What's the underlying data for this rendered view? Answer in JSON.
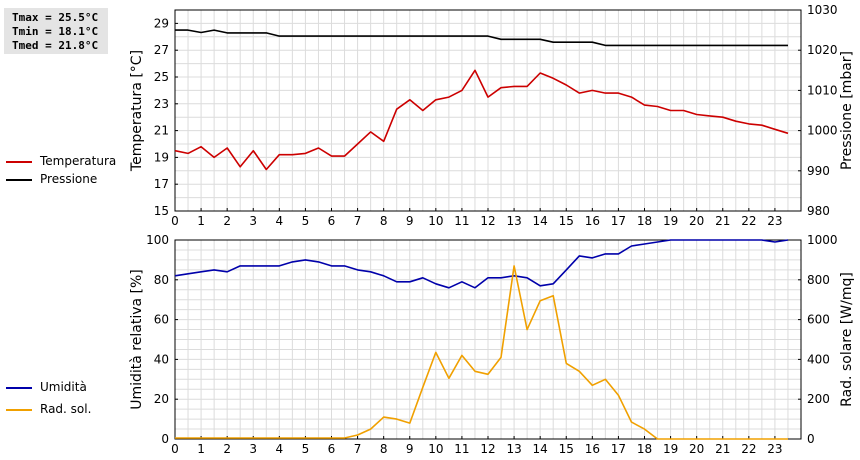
{
  "stats": {
    "tmax": "Tmax = 25.5°C",
    "tmin": "Tmin = 18.1°C",
    "tmed": "Tmed = 21.8°C"
  },
  "legend_top": [
    {
      "label": "Temperatura",
      "color": "#cc0000"
    },
    {
      "label": "Pressione",
      "color": "#000000"
    }
  ],
  "legend_bottom": [
    {
      "label": "Umidità",
      "color": "#0000aa"
    },
    {
      "label": "Rad. sol.",
      "color": "#f0a000"
    }
  ],
  "chart_data": [
    {
      "type": "line",
      "xlabel": "",
      "ylabel": "Temperatura [°C]",
      "ylabel_right": "Pressione [mbar]",
      "xlim": [
        0,
        24
      ],
      "ylim": [
        15,
        30
      ],
      "ylim_right": [
        980,
        1030
      ],
      "x_ticks": [
        "0",
        "1",
        "2",
        "3",
        "4",
        "5",
        "6",
        "7",
        "8",
        "9",
        "10",
        "11",
        "12",
        "13",
        "14",
        "15",
        "16",
        "17",
        "18",
        "19",
        "20",
        "21",
        "22",
        "23"
      ],
      "y_ticks": [
        "15",
        "17",
        "19",
        "21",
        "23",
        "25",
        "27",
        "29"
      ],
      "y_ticks_right": [
        "980",
        "990",
        "1000",
        "1010",
        "1020",
        "1030"
      ],
      "grid": true,
      "series": [
        {
          "name": "Temperatura",
          "axis": "left",
          "color": "#cc0000",
          "x": [
            0,
            0.5,
            1,
            1.5,
            2,
            2.5,
            3,
            3.5,
            4,
            4.5,
            5,
            5.5,
            6,
            6.5,
            7,
            7.5,
            8,
            8.5,
            9,
            9.5,
            10,
            10.5,
            11,
            11.5,
            12,
            12.5,
            13,
            13.5,
            14,
            14.5,
            15,
            15.5,
            16,
            16.5,
            17,
            17.5,
            18,
            18.5,
            19,
            19.5,
            20,
            20.5,
            21,
            21.5,
            22,
            22.5,
            23,
            23.5
          ],
          "values": [
            19.5,
            19.3,
            19.8,
            19.0,
            19.7,
            18.3,
            19.5,
            18.1,
            19.2,
            19.2,
            19.3,
            19.7,
            19.1,
            19.1,
            20.0,
            20.9,
            20.2,
            22.6,
            23.3,
            22.5,
            23.3,
            23.5,
            24.0,
            25.5,
            23.5,
            24.2,
            24.3,
            24.3,
            25.3,
            24.9,
            24.4,
            23.8,
            24.0,
            23.8,
            23.8,
            23.5,
            22.9,
            22.8,
            22.5,
            22.5,
            22.2,
            22.1,
            22.0,
            21.7,
            21.5,
            21.4,
            21.1,
            20.8
          ]
        },
        {
          "name": "Pressione",
          "axis": "right",
          "color": "#000000",
          "x": [
            0,
            0.5,
            1,
            1.5,
            2,
            2.5,
            3,
            3.5,
            4,
            4.5,
            5,
            5.5,
            6,
            6.5,
            7,
            7.5,
            8,
            8.5,
            9,
            9.5,
            10,
            10.5,
            11,
            11.5,
            12,
            12.5,
            13,
            13.5,
            14,
            14.5,
            15,
            15.5,
            16,
            16.5,
            17,
            17.5,
            18,
            18.5,
            19,
            19.5,
            20,
            20.5,
            21,
            21.5,
            22,
            22.5,
            23,
            23.5
          ],
          "values": [
            1025,
            1025,
            1024.4,
            1025,
            1024.3,
            1024.3,
            1024.3,
            1024.3,
            1023.5,
            1023.5,
            1023.5,
            1023.5,
            1023.5,
            1023.5,
            1023.5,
            1023.5,
            1023.5,
            1023.5,
            1023.5,
            1023.5,
            1023.5,
            1023.5,
            1023.5,
            1023.5,
            1023.5,
            1022.7,
            1022.7,
            1022.7,
            1022.7,
            1022,
            1022,
            1022,
            1022,
            1021.2,
            1021.2,
            1021.2,
            1021.2,
            1021.2,
            1021.2,
            1021.2,
            1021.2,
            1021.2,
            1021.2,
            1021.2,
            1021.2,
            1021.2,
            1021.2,
            1021.2
          ]
        }
      ]
    },
    {
      "type": "line",
      "xlabel": "",
      "ylabel": "Umidità relativa [%]",
      "ylabel_right": "Rad. solare [W/mq]",
      "xlim": [
        0,
        24
      ],
      "ylim": [
        0,
        100
      ],
      "ylim_right": [
        0,
        1000
      ],
      "x_ticks": [
        "0",
        "1",
        "2",
        "3",
        "4",
        "5",
        "6",
        "7",
        "8",
        "9",
        "10",
        "11",
        "12",
        "13",
        "14",
        "15",
        "16",
        "17",
        "18",
        "19",
        "20",
        "21",
        "22",
        "23"
      ],
      "y_ticks": [
        "0",
        "20",
        "40",
        "60",
        "80",
        "100"
      ],
      "y_ticks_right": [
        "0",
        "200",
        "400",
        "600",
        "800",
        "1000"
      ],
      "grid": true,
      "series": [
        {
          "name": "Umidità",
          "axis": "left",
          "color": "#0000aa",
          "x": [
            0,
            0.5,
            1,
            1.5,
            2,
            2.5,
            3,
            3.5,
            4,
            4.5,
            5,
            5.5,
            6,
            6.5,
            7,
            7.5,
            8,
            8.5,
            9,
            9.5,
            10,
            10.5,
            11,
            11.5,
            12,
            12.5,
            13,
            13.5,
            14,
            14.5,
            15,
            15.5,
            16,
            16.5,
            17,
            17.5,
            18,
            18.5,
            19,
            19.5,
            20,
            20.5,
            21,
            21.5,
            22,
            22.5,
            23,
            23.5
          ],
          "values": [
            82,
            83,
            84,
            85,
            84,
            87,
            87,
            87,
            87,
            89,
            90,
            89,
            87,
            87,
            85,
            84,
            82,
            79,
            79,
            81,
            78,
            76,
            79,
            76,
            81,
            81,
            82,
            81,
            77,
            78,
            85,
            92,
            91,
            93,
            93,
            97,
            98,
            99,
            100,
            100,
            100,
            100,
            100,
            100,
            100,
            100,
            99,
            100
          ]
        },
        {
          "name": "Rad. sol.",
          "axis": "right",
          "color": "#f0a000",
          "x": [
            0,
            0.5,
            1,
            1.5,
            2,
            2.5,
            3,
            3.5,
            4,
            4.5,
            5,
            5.5,
            6,
            6.5,
            7,
            7.5,
            8,
            8.5,
            9,
            9.5,
            10,
            10.5,
            11,
            11.5,
            12,
            12.5,
            13,
            13.5,
            14,
            14.5,
            15,
            15.5,
            16,
            16.5,
            17,
            17.5,
            18,
            18.5,
            19,
            19.5,
            20,
            20.5,
            21,
            21.5,
            22,
            22.5,
            23,
            23.5
          ],
          "values": [
            5,
            5,
            5,
            5,
            5,
            5,
            5,
            5,
            5,
            5,
            5,
            5,
            5,
            5,
            20,
            50,
            110,
            100,
            80,
            260,
            435,
            305,
            420,
            340,
            325,
            410,
            870,
            550,
            695,
            720,
            380,
            340,
            270,
            300,
            220,
            85,
            50,
            0,
            0,
            0,
            0,
            0,
            0,
            0,
            0,
            0,
            0,
            0
          ]
        }
      ]
    }
  ]
}
